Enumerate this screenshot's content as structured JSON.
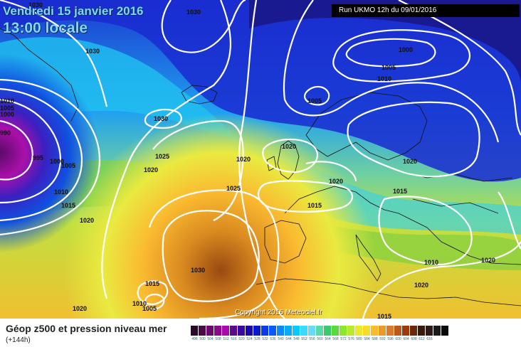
{
  "header": {
    "date_line": "Vendredi 15 janvier 2016",
    "time_line": "13:00 locale",
    "run_label": "Run UKMO 12h du 09/01/2016"
  },
  "copyright": "Copyright 2016 Meteociel.fr",
  "footer": {
    "title": "Géop z500 et pression niveau mer",
    "subtitle": "(+144h)"
  },
  "isobar_labels": [
    "1030",
    "1030",
    "1030",
    "1030",
    "1010",
    "1005",
    "1000",
    "990",
    "995",
    "1000",
    "1005",
    "1010",
    "1015",
    "1020",
    "1025",
    "1020",
    "1020",
    "1000",
    "1005",
    "1005",
    "1010",
    "1020",
    "1020",
    "1025",
    "1015",
    "1020",
    "1015",
    "1030",
    "1015",
    "1010",
    "1005",
    "1020",
    "1020",
    "1010",
    "1020",
    "1015"
  ],
  "scale": {
    "colors": [
      "#2a0a2a",
      "#4a0a4a",
      "#6a0a6a",
      "#8a0a8a",
      "#aa0aaa",
      "#5a0a8a",
      "#3a0a9a",
      "#1a0aaa",
      "#0a1aca",
      "#0a3aea",
      "#0a5afa",
      "#0a8afa",
      "#0aaafa",
      "#0acafa",
      "#3adafa",
      "#6adafa",
      "#5adaaa",
      "#3aca6a",
      "#5ada3a",
      "#8aea2a",
      "#baea2a",
      "#eaea2a",
      "#fada2a",
      "#faba2a",
      "#ea9a2a",
      "#da7a2a",
      "#ba5a1a",
      "#9a3a0a",
      "#6a2a0a",
      "#3a1a0a",
      "#2a1a1a",
      "#1a1a1a",
      "#0a0a0a"
    ],
    "labels": [
      "496",
      "500",
      "504",
      "508",
      "512",
      "516",
      "520",
      "524",
      "528",
      "532",
      "536",
      "540",
      "544",
      "548",
      "552",
      "556",
      "560",
      "564",
      "568",
      "572",
      "576",
      "580",
      "584",
      "588",
      "592",
      "596",
      "600",
      "604",
      "608",
      "612",
      "616",
      "",
      ""
    ]
  }
}
